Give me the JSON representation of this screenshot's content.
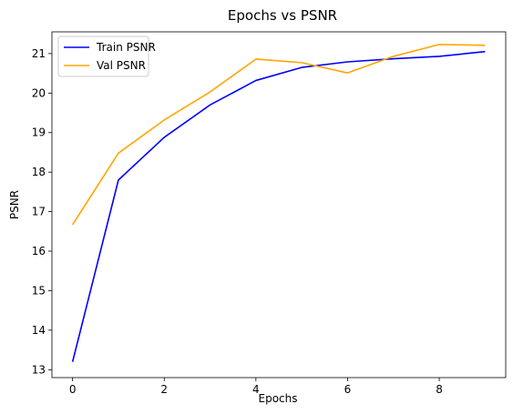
{
  "chart_data": {
    "type": "line",
    "title": "Epochs vs PSNR",
    "xlabel": "Epochs",
    "ylabel": "PSNR",
    "x": [
      0,
      1,
      2,
      3,
      4,
      5,
      6,
      7,
      8,
      9
    ],
    "xlim": [
      -0.45,
      9.45
    ],
    "ylim": [
      12.8,
      21.55
    ],
    "xticks": [
      0,
      2,
      4,
      6,
      8
    ],
    "yticks": [
      13,
      14,
      15,
      16,
      17,
      18,
      19,
      20,
      21
    ],
    "grid": false,
    "legend_position": "top-left",
    "series": [
      {
        "name": "Train PSNR",
        "color": "#0000ff",
        "values": [
          13.2,
          17.8,
          18.88,
          19.7,
          20.32,
          20.65,
          20.79,
          20.87,
          20.93,
          21.05
        ]
      },
      {
        "name": "Val PSNR",
        "color": "#ffa500",
        "values": [
          16.67,
          18.48,
          19.32,
          20.03,
          20.86,
          20.77,
          20.51,
          20.93,
          21.23,
          21.21
        ]
      }
    ]
  }
}
